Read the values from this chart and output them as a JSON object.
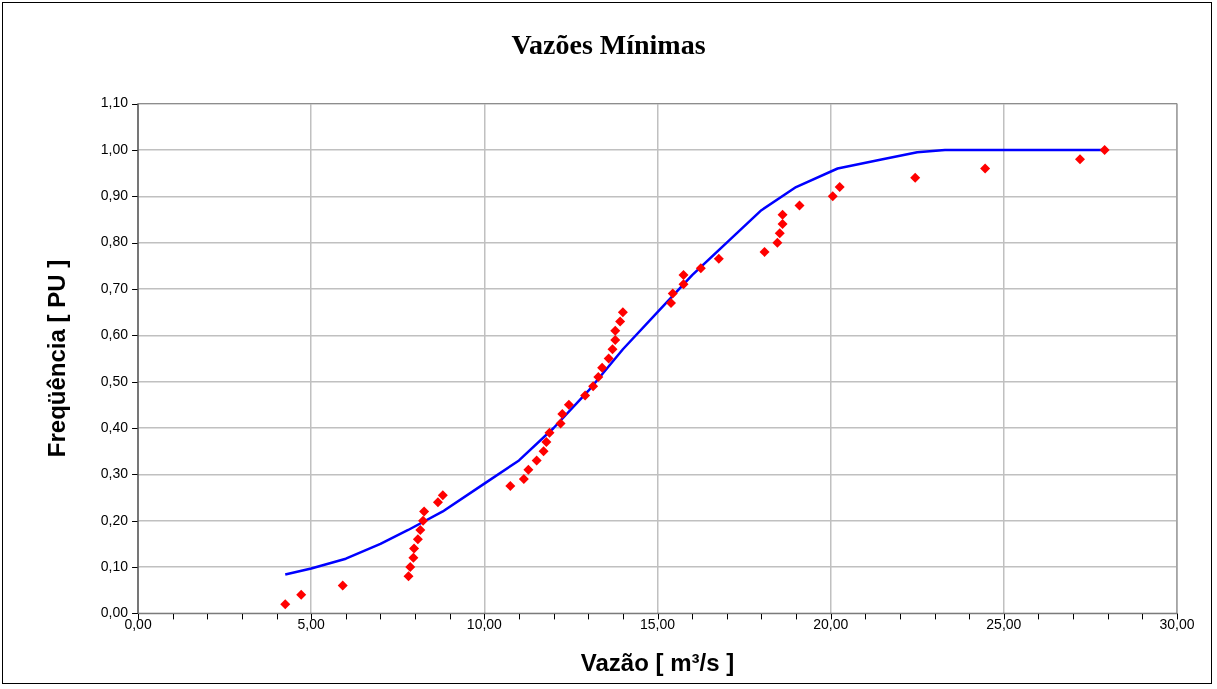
{
  "chart_data": {
    "type": "scatter",
    "title": "Vazões Mínimas",
    "xlabel": "Vazão [ m³/s ]",
    "ylabel": "Freqüência [ PU ]",
    "xlim": [
      0,
      30
    ],
    "ylim": [
      0,
      1.1
    ],
    "xticks": [
      {
        "value": 0,
        "label": "0,00"
      },
      {
        "value": 1,
        "label": null
      },
      {
        "value": 2,
        "label": null
      },
      {
        "value": 3,
        "label": null
      },
      {
        "value": 4,
        "label": null
      },
      {
        "value": 5,
        "label": "5,00"
      },
      {
        "value": 6,
        "label": null
      },
      {
        "value": 7,
        "label": null
      },
      {
        "value": 8,
        "label": null
      },
      {
        "value": 9,
        "label": null
      },
      {
        "value": 10,
        "label": "10,00"
      },
      {
        "value": 11,
        "label": null
      },
      {
        "value": 12,
        "label": null
      },
      {
        "value": 13,
        "label": null
      },
      {
        "value": 14,
        "label": null
      },
      {
        "value": 15,
        "label": "15,00"
      },
      {
        "value": 16,
        "label": null
      },
      {
        "value": 17,
        "label": null
      },
      {
        "value": 18,
        "label": null
      },
      {
        "value": 19,
        "label": null
      },
      {
        "value": 20,
        "label": "20,00"
      },
      {
        "value": 21,
        "label": null
      },
      {
        "value": 22,
        "label": null
      },
      {
        "value": 23,
        "label": null
      },
      {
        "value": 24,
        "label": null
      },
      {
        "value": 25,
        "label": "25,00"
      },
      {
        "value": 26,
        "label": null
      },
      {
        "value": 27,
        "label": null
      },
      {
        "value": 28,
        "label": null
      },
      {
        "value": 29,
        "label": null
      },
      {
        "value": 30,
        "label": "30,00"
      }
    ],
    "yticks": [
      {
        "value": 0,
        "label": "0,00"
      },
      {
        "value": 0.1,
        "label": "0,10"
      },
      {
        "value": 0.2,
        "label": "0,20"
      },
      {
        "value": 0.3,
        "label": "0,30"
      },
      {
        "value": 0.4,
        "label": "0,40"
      },
      {
        "value": 0.5,
        "label": "0,50"
      },
      {
        "value": 0.6,
        "label": "0,60"
      },
      {
        "value": 0.7,
        "label": "0,70"
      },
      {
        "value": 0.8,
        "label": "0,80"
      },
      {
        "value": 0.9,
        "label": "0,90"
      },
      {
        "value": 1,
        "label": "1,00"
      },
      {
        "value": 1.1,
        "label": "1,10"
      }
    ],
    "grid": true,
    "legend": false,
    "series": [
      {
        "type": "scatter",
        "color": "#ff0000",
        "marker": "diamond",
        "x": [
          4.25,
          4.71,
          5.91,
          7.81,
          7.86,
          7.95,
          7.97,
          8.08,
          8.15,
          8.23,
          8.26,
          8.66,
          8.8,
          10.75,
          11.14,
          11.27,
          11.51,
          11.71,
          11.79,
          11.88,
          12.2,
          12.25,
          12.44,
          12.91,
          13.14,
          13.29,
          13.4,
          13.59,
          13.7,
          13.78,
          13.78,
          13.92,
          14.0,
          15.39,
          15.44,
          15.75,
          15.75,
          16.25,
          16.77,
          18.09,
          18.46,
          18.53,
          18.61,
          18.61,
          19.1,
          20.06,
          20.26,
          22.44,
          24.46,
          27.2,
          27.91
        ],
        "values": [
          0.02,
          0.04,
          0.06,
          0.08,
          0.1,
          0.12,
          0.14,
          0.16,
          0.18,
          0.2,
          0.22,
          0.24,
          0.255,
          0.275,
          0.29,
          0.31,
          0.33,
          0.35,
          0.37,
          0.39,
          0.41,
          0.43,
          0.45,
          0.47,
          0.49,
          0.51,
          0.53,
          0.55,
          0.57,
          0.59,
          0.61,
          0.63,
          0.65,
          0.67,
          0.69,
          0.71,
          0.73,
          0.745,
          0.765,
          0.78,
          0.8,
          0.82,
          0.84,
          0.86,
          0.88,
          0.9,
          0.92,
          0.94,
          0.96,
          0.98,
          1.0
        ]
      },
      {
        "type": "line",
        "color": "#0000ff",
        "marker": "none",
        "x": [
          4.25,
          5,
          6,
          7,
          7.8,
          8.8,
          10,
          11,
          12,
          13,
          14,
          15,
          16,
          17,
          18,
          19,
          20.2,
          21.5,
          22.5,
          23.3,
          27.9
        ],
        "values": [
          0.084,
          0.097,
          0.118,
          0.15,
          0.18,
          0.22,
          0.28,
          0.33,
          0.4,
          0.48,
          0.57,
          0.65,
          0.73,
          0.8,
          0.87,
          0.92,
          0.96,
          0.98,
          0.995,
          1.0,
          1.0
        ]
      }
    ]
  }
}
